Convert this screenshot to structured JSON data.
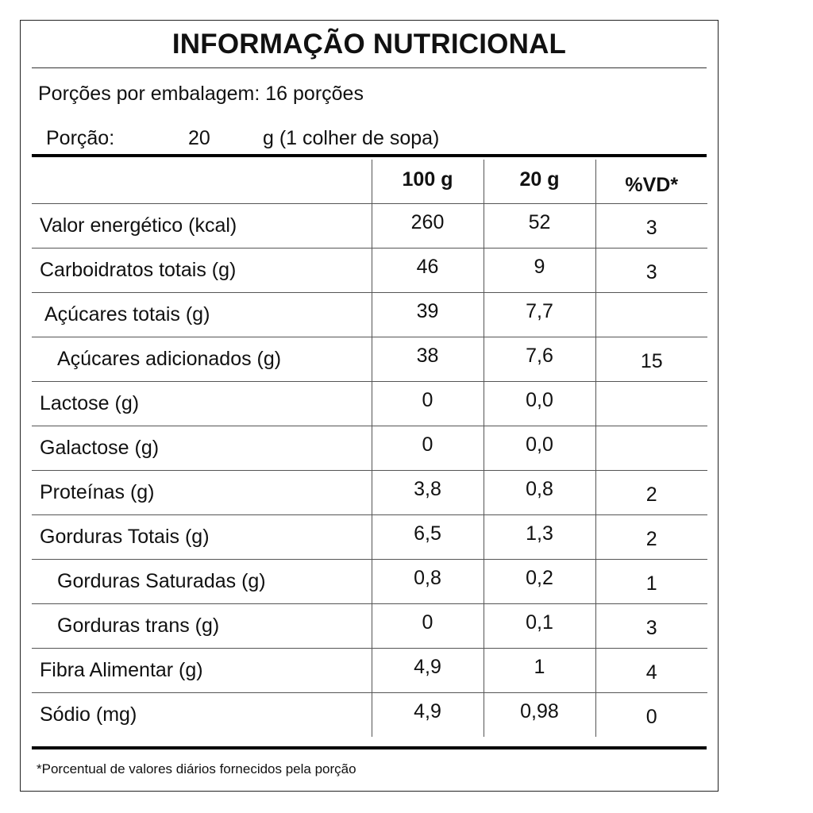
{
  "label": {
    "title": "INFORMAÇÃO NUTRICIONAL",
    "servings_per_package": "Porções por embalagem: 16 porções",
    "portion": {
      "label": "Porção:",
      "amount": "20",
      "unit_desc": "g (1 colher de sopa)"
    },
    "columns": [
      "",
      "100 g",
      "20 g",
      "%VD*"
    ],
    "rows": [
      {
        "name": "Valor energético (kcal)",
        "per100": "260",
        "perPortion": "52",
        "vd": "3"
      },
      {
        "name": "Carboidratos totais (g)",
        "per100": "46",
        "perPortion": "9",
        "vd": "3"
      },
      {
        "name": "Açúcares totais (g)",
        "per100": "39",
        "perPortion": "7,7",
        "vd": ""
      },
      {
        "name": "Açúcares adicionados (g)",
        "per100": "38",
        "perPortion": "7,6",
        "vd": "15"
      },
      {
        "name": "Lactose (g)",
        "per100": "0",
        "perPortion": "0,0",
        "vd": ""
      },
      {
        "name": "Galactose (g)",
        "per100": "0",
        "perPortion": "0,0",
        "vd": ""
      },
      {
        "name": "Proteínas (g)",
        "per100": "3,8",
        "perPortion": "0,8",
        "vd": "2"
      },
      {
        "name": "Gorduras Totais (g)",
        "per100": "6,5",
        "perPortion": "1,3",
        "vd": "2"
      },
      {
        "name": "Gorduras Saturadas (g)",
        "per100": "0,8",
        "perPortion": "0,2",
        "vd": "1"
      },
      {
        "name": "Gorduras trans (g)",
        "per100": "0",
        "perPortion": "0,1",
        "vd": "3"
      },
      {
        "name": "Fibra Alimentar (g)",
        "per100": "4,9",
        "perPortion": "1",
        "vd": "4"
      },
      {
        "name": "Sódio (mg)",
        "per100": "4,9",
        "perPortion": "0,98",
        "vd": "0"
      }
    ],
    "footnote": "*Porcentual de valores diários fornecidos pela porção"
  }
}
